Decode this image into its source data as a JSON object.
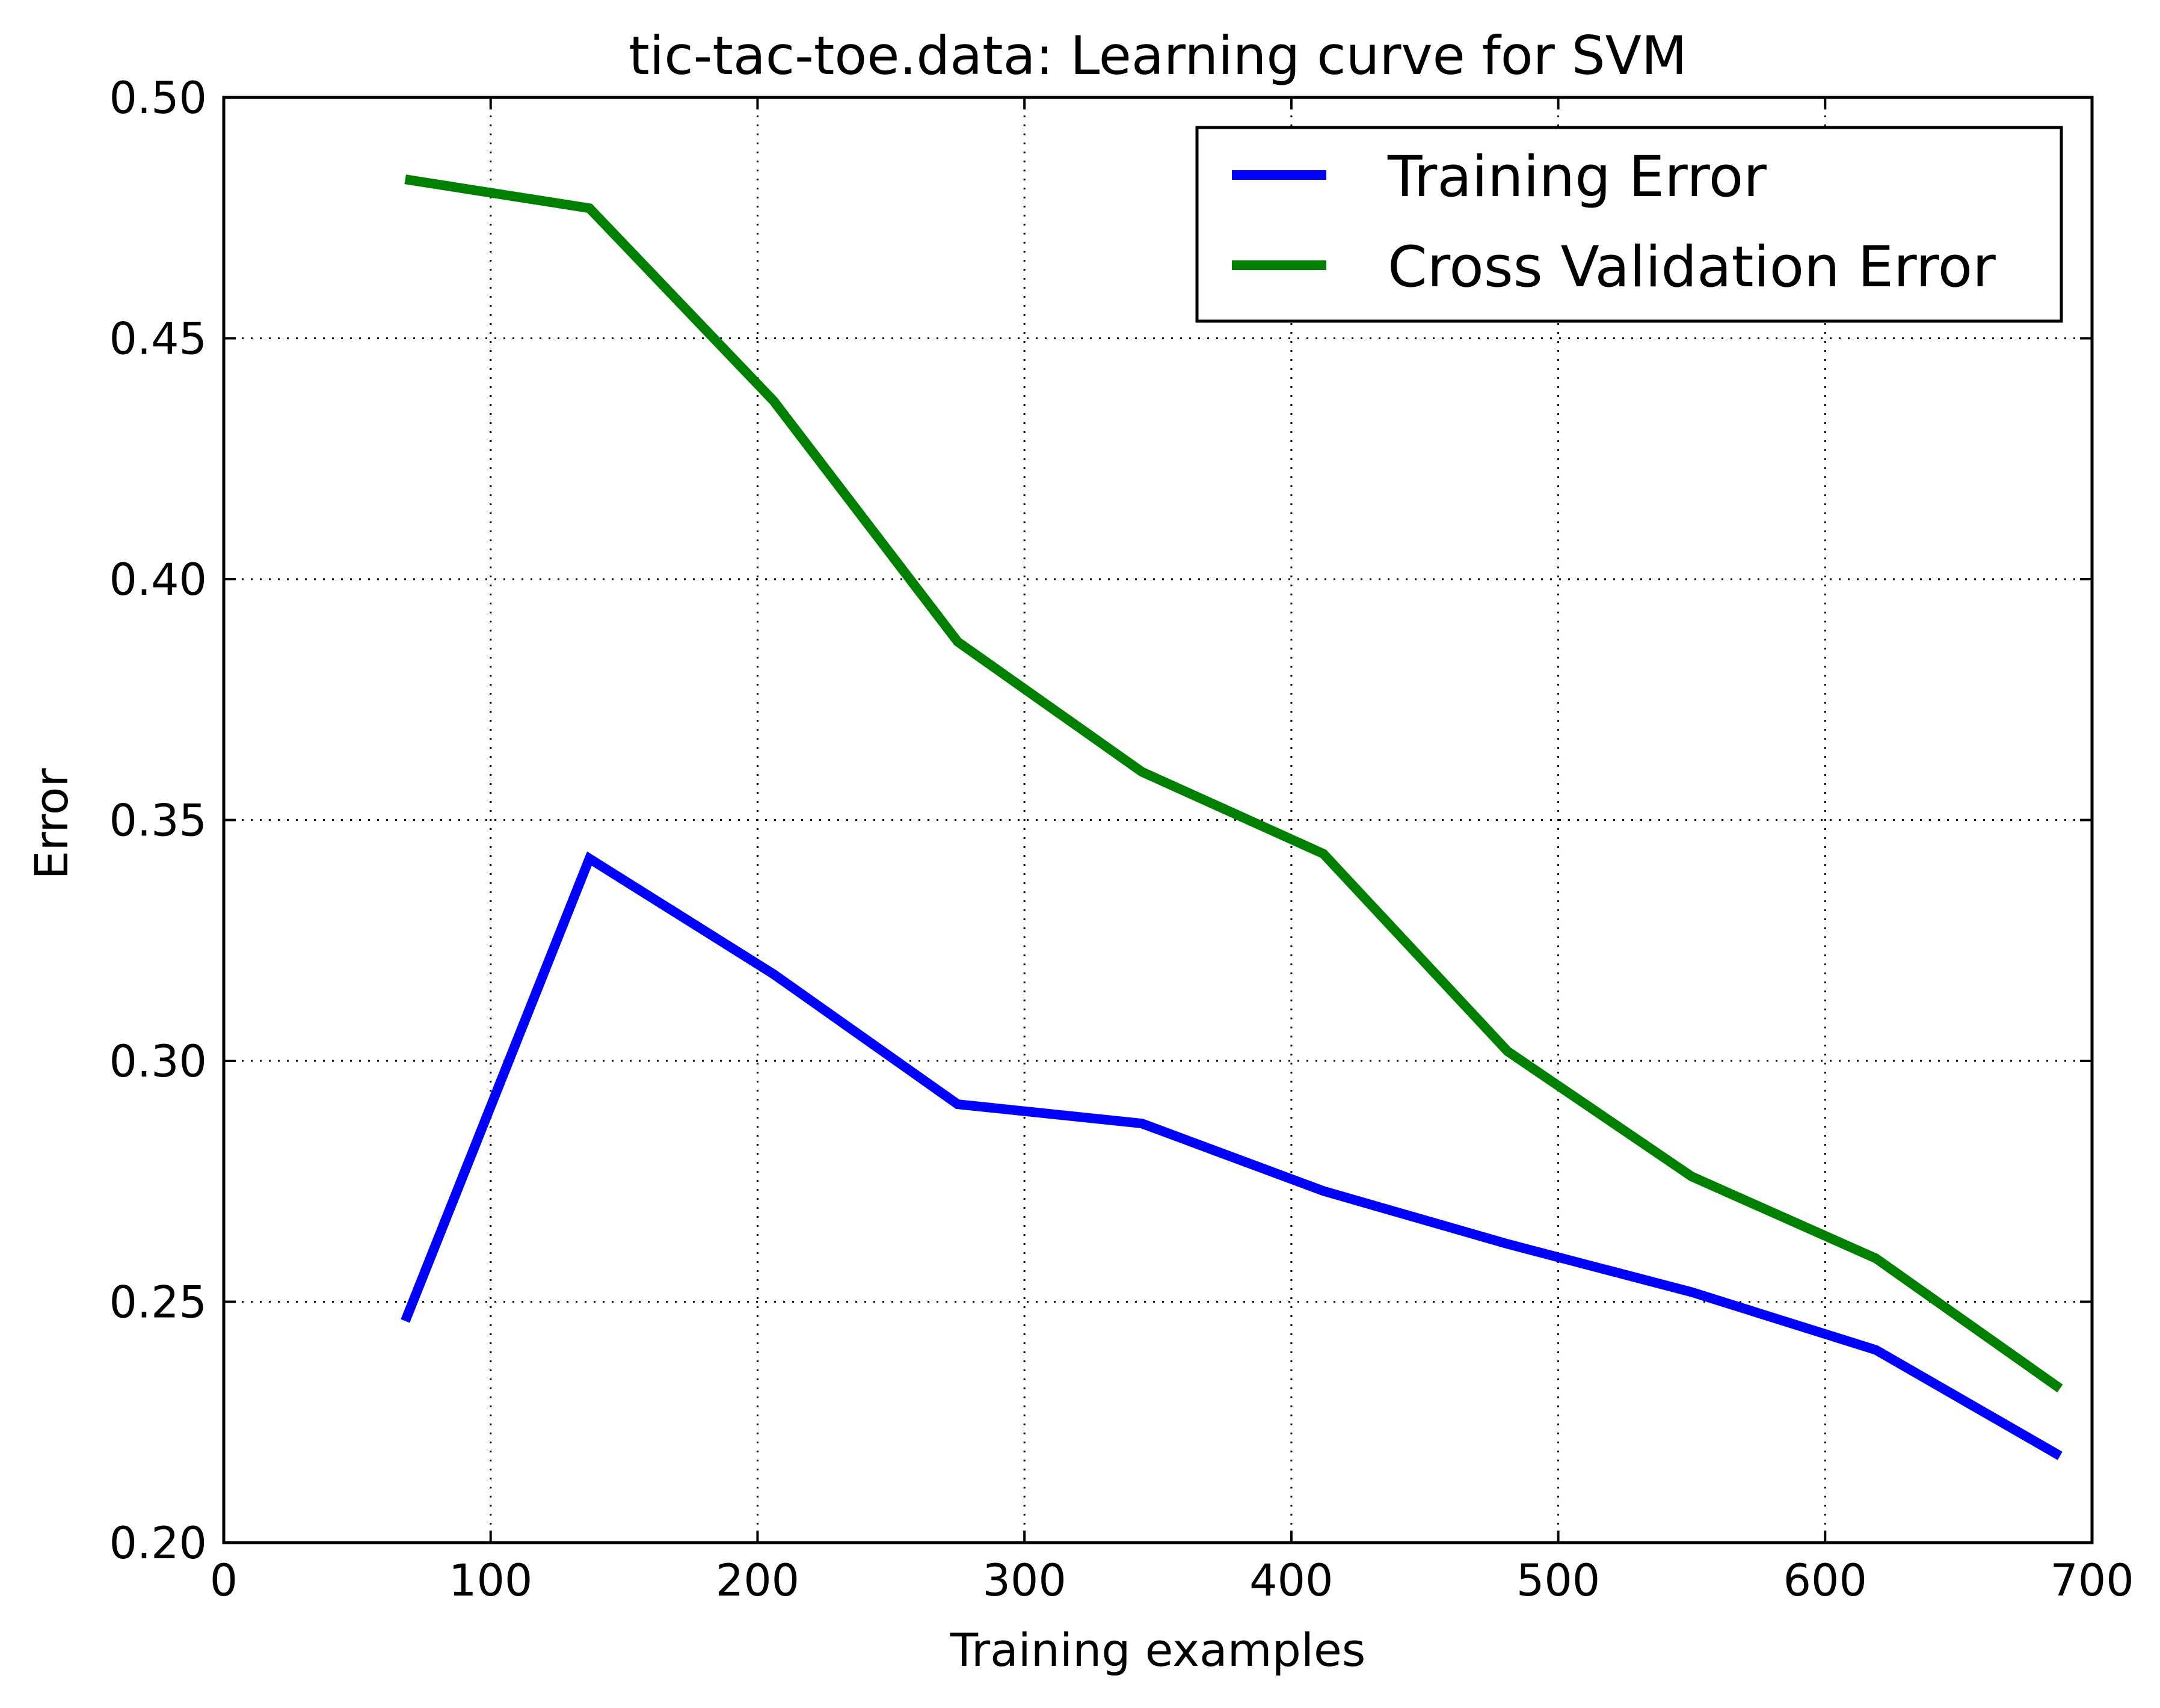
{
  "chart_data": {
    "type": "line",
    "title": "tic-tac-toe.data: Learning curve for SVM",
    "xlabel": "Training examples",
    "ylabel": "Error",
    "xlim": [
      0,
      700
    ],
    "ylim": [
      0.2,
      0.5
    ],
    "xticks": [
      0,
      100,
      200,
      300,
      400,
      500,
      600,
      700
    ],
    "yticks": [
      0.2,
      0.25,
      0.3,
      0.35,
      0.4,
      0.45,
      0.5
    ],
    "xtick_labels": [
      "0",
      "100",
      "200",
      "300",
      "400",
      "500",
      "600",
      "700"
    ],
    "ytick_labels": [
      "0.20",
      "0.25",
      "0.30",
      "0.35",
      "0.40",
      "0.45",
      "0.50"
    ],
    "grid": true,
    "legend_position": "top-right",
    "series": [
      {
        "name": "Training Error",
        "color": "#0000ff",
        "x": [
          68,
          137,
          206,
          275,
          344,
          412,
          481,
          550,
          619,
          688
        ],
        "y": [
          0.246,
          0.342,
          0.318,
          0.291,
          0.287,
          0.273,
          0.262,
          0.252,
          0.24,
          0.218
        ]
      },
      {
        "name": "Cross Validation Error",
        "color": "#008000",
        "x": [
          68,
          137,
          206,
          275,
          344,
          412,
          481,
          550,
          619,
          688
        ],
        "y": [
          0.483,
          0.477,
          0.437,
          0.387,
          0.36,
          0.343,
          0.302,
          0.276,
          0.259,
          0.232
        ]
      }
    ]
  }
}
